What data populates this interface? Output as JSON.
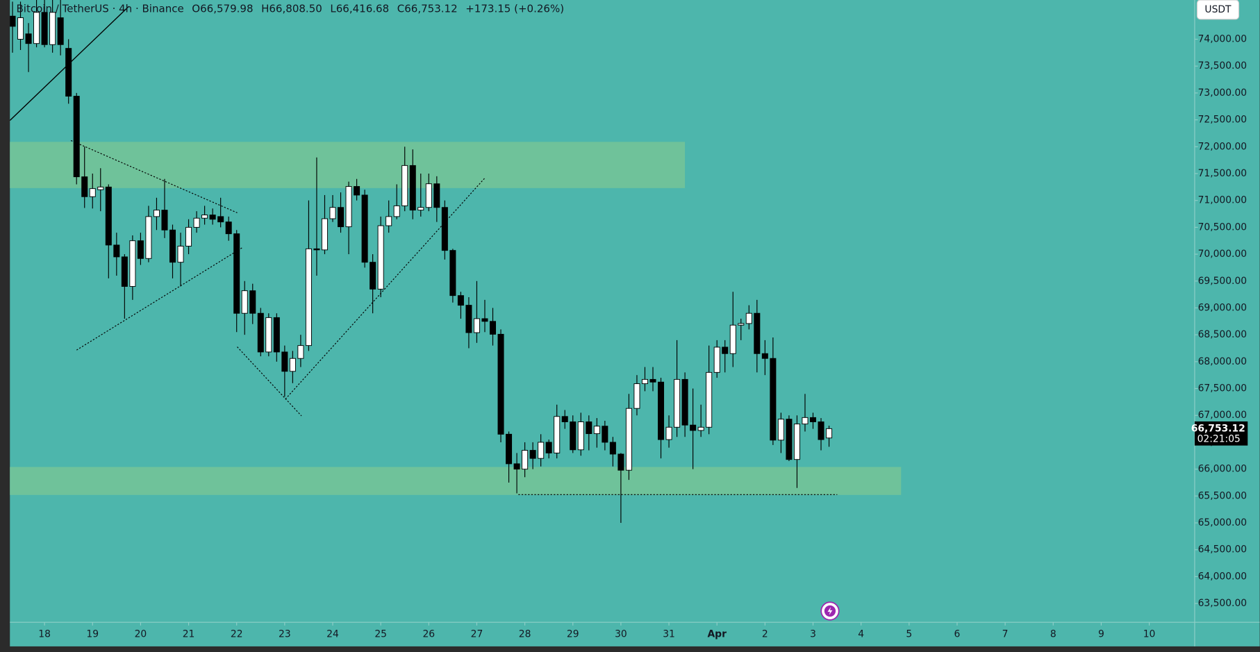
{
  "header": {
    "symbol": "Bitcoin / TetherUS · 4h · Binance",
    "fields": [
      {
        "key": "O",
        "value": "66,579.98"
      },
      {
        "key": "H",
        "value": "66,808.50"
      },
      {
        "key": "L",
        "value": "66,416.68"
      },
      {
        "key": "C",
        "value": "66,753.12"
      }
    ],
    "change": "+173.15 (+0.26%)",
    "currency_button": "USDT",
    "countdown": "02:21:05"
  },
  "chart_data": {
    "type": "candlestick",
    "x": [
      -16,
      -12,
      -8,
      -4,
      0,
      4,
      8,
      12,
      16,
      20,
      24,
      28,
      32,
      36,
      40,
      44,
      48,
      52,
      56,
      60,
      64,
      68,
      72,
      76,
      80,
      84,
      88,
      92,
      96,
      100,
      104,
      108,
      112,
      116,
      120,
      124,
      128,
      132,
      136,
      140,
      144,
      148,
      152,
      156,
      160,
      164,
      168,
      172,
      176,
      180,
      184,
      188,
      192,
      196,
      200,
      204,
      208,
      212,
      216,
      220,
      224,
      228,
      232,
      236,
      240,
      244,
      248,
      252,
      256,
      260,
      264,
      268,
      272,
      276,
      280,
      284,
      288,
      292,
      296,
      300,
      304,
      308,
      312,
      316,
      320,
      324,
      328,
      332,
      336,
      340,
      344,
      348,
      352,
      356,
      360,
      364,
      368,
      372,
      376,
      380,
      384,
      388,
      392
    ],
    "open": [
      74430,
      74000,
      74100,
      73920,
      74500,
      73900,
      74400,
      73830,
      72940,
      71440,
      71070,
      71200,
      71250,
      70170,
      69950,
      69400,
      70250,
      69920,
      70700,
      70820,
      70450,
      69850,
      70150,
      70500,
      70670,
      70730,
      70700,
      70600,
      70380,
      68900,
      69320,
      68900,
      68180,
      68820,
      68180,
      67820,
      68060,
      68300,
      70100,
      70080,
      70660,
      70870,
      70510,
      71260,
      71100,
      69850,
      69350,
      70530,
      70700,
      70900,
      71650,
      70820,
      70870,
      71310,
      70870,
      70070,
      69230,
      69050,
      68540,
      68800,
      68750,
      68510,
      66650,
      66100,
      66000,
      66350,
      66200,
      66500,
      66300,
      66980,
      66880,
      66360,
      66880,
      66660,
      66800,
      66500,
      66280,
      65980,
      67130,
      67590,
      67670,
      67620,
      66550,
      66780,
      67670,
      66820,
      66720,
      66780,
      67800,
      68270,
      68150,
      68680,
      68710,
      68900,
      68150,
      68060,
      66540,
      66930,
      66180,
      66840,
      66960,
      66880,
      66579.98
    ],
    "high": [
      74700,
      74700,
      74300,
      74730,
      74730,
      74730,
      74730,
      74000,
      73000,
      72000,
      71500,
      71600,
      71300,
      70400,
      70000,
      70350,
      70400,
      70900,
      71050,
      71400,
      70550,
      70400,
      70650,
      70800,
      70900,
      70850,
      71050,
      70700,
      70450,
      69500,
      69450,
      69000,
      68900,
      68900,
      68300,
      68200,
      68500,
      71000,
      71800,
      71100,
      71100,
      71150,
      71350,
      71400,
      71200,
      70000,
      70700,
      71000,
      71300,
      72000,
      71950,
      71500,
      71500,
      71450,
      71000,
      70100,
      69300,
      69200,
      69500,
      69150,
      69000,
      68600,
      66700,
      66300,
      66500,
      66500,
      66650,
      66550,
      67200,
      67100,
      67000,
      67050,
      67000,
      66950,
      66900,
      66600,
      66300,
      67400,
      67750,
      67900,
      67900,
      67700,
      67000,
      68400,
      67800,
      67500,
      67200,
      68300,
      68400,
      68400,
      69300,
      68800,
      69050,
      69150,
      68400,
      68450,
      67050,
      67000,
      67000,
      67400,
      67050,
      66950,
      66808.5
    ],
    "low": [
      73750,
      73800,
      73390,
      73850,
      73850,
      73750,
      73700,
      72800,
      71300,
      70860,
      70850,
      70800,
      69550,
      69600,
      68800,
      69150,
      69800,
      69850,
      70450,
      70300,
      69550,
      69400,
      70000,
      70400,
      70550,
      70550,
      70500,
      70250,
      68550,
      68500,
      68700,
      68100,
      68100,
      68000,
      67350,
      67600,
      67900,
      68200,
      69600,
      70000,
      70600,
      70400,
      70000,
      71000,
      69750,
      68900,
      69200,
      70400,
      70650,
      70800,
      70650,
      70700,
      70800,
      70600,
      69900,
      69100,
      68800,
      68250,
      68350,
      68550,
      68300,
      66500,
      65750,
      65550,
      65850,
      66000,
      66050,
      66200,
      66200,
      66750,
      66300,
      66250,
      66350,
      66400,
      66350,
      66050,
      65000,
      65800,
      67000,
      67450,
      67450,
      66200,
      66400,
      66600,
      66600,
      66000,
      66600,
      66650,
      67700,
      67800,
      67900,
      68400,
      68600,
      67800,
      67750,
      66450,
      66300,
      66150,
      65650,
      66700,
      66750,
      66350,
      66416.68
    ],
    "close": [
      74240,
      74400,
      73920,
      74500,
      73900,
      74500,
      73900,
      72940,
      71440,
      71070,
      71220,
      71250,
      70170,
      69950,
      69400,
      70250,
      69920,
      70700,
      70820,
      70450,
      69850,
      70150,
      70500,
      70670,
      70730,
      70650,
      70600,
      70380,
      68900,
      69320,
      68900,
      68180,
      68820,
      68180,
      67820,
      68060,
      68300,
      70100,
      70080,
      70660,
      70870,
      70510,
      71260,
      71100,
      69850,
      69350,
      70530,
      70700,
      70900,
      71650,
      70820,
      70870,
      71310,
      70870,
      70070,
      69230,
      69050,
      68540,
      68800,
      68750,
      68510,
      66650,
      66100,
      66000,
      66350,
      66200,
      66500,
      66300,
      66980,
      66880,
      66360,
      66880,
      66660,
      66800,
      66500,
      66280,
      65980,
      67130,
      67590,
      67670,
      67620,
      66550,
      66780,
      67670,
      66820,
      66720,
      66780,
      67800,
      68270,
      68150,
      68680,
      68710,
      68900,
      68150,
      68060,
      66540,
      66930,
      66180,
      66840,
      66960,
      66880,
      66550,
      66753.12
    ],
    "up_color": "#ffffff",
    "down_color": "#000000",
    "zone_color": "#6fc29a",
    "zones": [
      {
        "x": [
          -18,
          320
        ],
        "y": [
          71230,
          72090
        ]
      },
      {
        "x": [
          -18,
          428
        ],
        "y": [
          65520,
          66040
        ]
      }
    ],
    "xlim": [
      -17.3,
      574.7
    ],
    "ylim": [
      63150,
      74730
    ],
    "xticks": [
      {
        "value": 0,
        "label": "18"
      },
      {
        "value": 24,
        "label": "19"
      },
      {
        "value": 48,
        "label": "20"
      },
      {
        "value": 72,
        "label": "21"
      },
      {
        "value": 96,
        "label": "22"
      },
      {
        "value": 120,
        "label": "23"
      },
      {
        "value": 144,
        "label": "24"
      },
      {
        "value": 168,
        "label": "25"
      },
      {
        "value": 192,
        "label": "26"
      },
      {
        "value": 216,
        "label": "27"
      },
      {
        "value": 240,
        "label": "28"
      },
      {
        "value": 264,
        "label": "29"
      },
      {
        "value": 288,
        "label": "30"
      },
      {
        "value": 312,
        "label": "31"
      },
      {
        "value": 336,
        "label": "Apr"
      },
      {
        "value": 360,
        "label": "2"
      },
      {
        "value": 384,
        "label": "3"
      },
      {
        "value": 408,
        "label": "4"
      },
      {
        "value": 432,
        "label": "5"
      },
      {
        "value": 456,
        "label": "6"
      },
      {
        "value": 480,
        "label": "7"
      },
      {
        "value": 504,
        "label": "8"
      },
      {
        "value": 528,
        "label": "9"
      },
      {
        "value": 552,
        "label": "10"
      }
    ],
    "yticks": [
      {
        "value": 63500,
        "label": "63,500.00"
      },
      {
        "value": 64000,
        "label": "64,000.00"
      },
      {
        "value": 64500,
        "label": "64,500.00"
      },
      {
        "value": 65000,
        "label": "65,000.00"
      },
      {
        "value": 65500,
        "label": "65,500.00"
      },
      {
        "value": 66000,
        "label": "66,000.00"
      },
      {
        "value": 66500,
        "label": "66,500.00"
      },
      {
        "value": 67000,
        "label": "67,000.00"
      },
      {
        "value": 67500,
        "label": "67,500.00"
      },
      {
        "value": 68000,
        "label": "68,000.00"
      },
      {
        "value": 68500,
        "label": "68,500.00"
      },
      {
        "value": 69000,
        "label": "69,000.00"
      },
      {
        "value": 69500,
        "label": "69,500.00"
      },
      {
        "value": 70000,
        "label": "70,000.00"
      },
      {
        "value": 70500,
        "label": "70,500.00"
      },
      {
        "value": 71000,
        "label": "71,000.00"
      },
      {
        "value": 71500,
        "label": "71,500.00"
      },
      {
        "value": 72000,
        "label": "72,000.00"
      },
      {
        "value": 72500,
        "label": "72,500.00"
      },
      {
        "value": 73000,
        "label": "73,000.00"
      },
      {
        "value": 73500,
        "label": "73,500.00"
      },
      {
        "value": 74000,
        "label": "74,000.00"
      }
    ],
    "grid": false
  }
}
